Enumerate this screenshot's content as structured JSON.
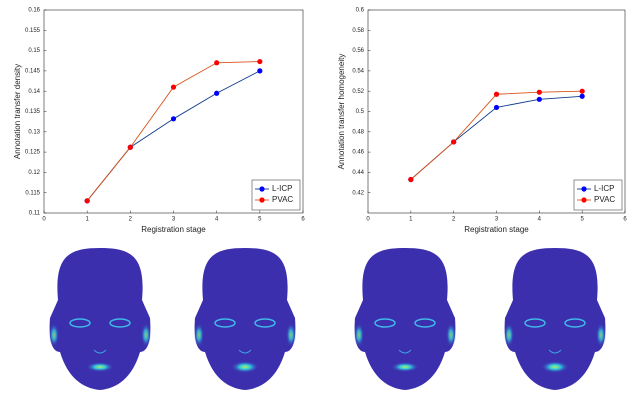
{
  "chart_data": [
    {
      "type": "line",
      "x_label": "Registration stage",
      "y_label": "Annotation transfer density",
      "x": [
        1,
        2,
        3,
        4,
        5
      ],
      "xlim": [
        0,
        6
      ],
      "xticks": [
        0,
        1,
        2,
        3,
        4,
        5,
        6
      ],
      "ylim": [
        0.11,
        0.16
      ],
      "yticks": [
        0.11,
        0.115,
        0.12,
        0.125,
        0.13,
        0.135,
        0.14,
        0.145,
        0.15,
        0.155,
        0.16
      ],
      "legend": "lower right",
      "grid": false,
      "series": [
        {
          "name": "L-ICP",
          "color": "#0000ff",
          "line_color": "#0f3c8c",
          "values": [
            0.113,
            0.1262,
            0.1332,
            0.1395,
            0.145
          ]
        },
        {
          "name": "PVAC",
          "color": "#ff0000",
          "line_color": "#d95319",
          "values": [
            0.113,
            0.1262,
            0.141,
            0.147,
            0.1473
          ]
        }
      ]
    },
    {
      "type": "line",
      "x_label": "Registration stage",
      "y_label": "Annotation transfer homogeneity",
      "x": [
        1,
        2,
        3,
        4,
        5
      ],
      "xlim": [
        0,
        6
      ],
      "xticks": [
        0,
        1,
        2,
        3,
        4,
        5,
        6
      ],
      "ylim": [
        0.4,
        0.6
      ],
      "yticks": [
        0.42,
        0.44,
        0.46,
        0.48,
        0.5,
        0.52,
        0.54,
        0.56,
        0.58,
        0.6
      ],
      "legend": "lower right",
      "grid": false,
      "series": [
        {
          "name": "L-ICP",
          "color": "#0000ff",
          "line_color": "#0f3c8c",
          "values": [
            0.433,
            0.47,
            0.504,
            0.512,
            0.515
          ]
        },
        {
          "name": "PVAC",
          "color": "#ff0000",
          "line_color": "#d95319",
          "values": [
            0.433,
            0.47,
            0.517,
            0.519,
            0.52
          ]
        }
      ]
    }
  ]
}
